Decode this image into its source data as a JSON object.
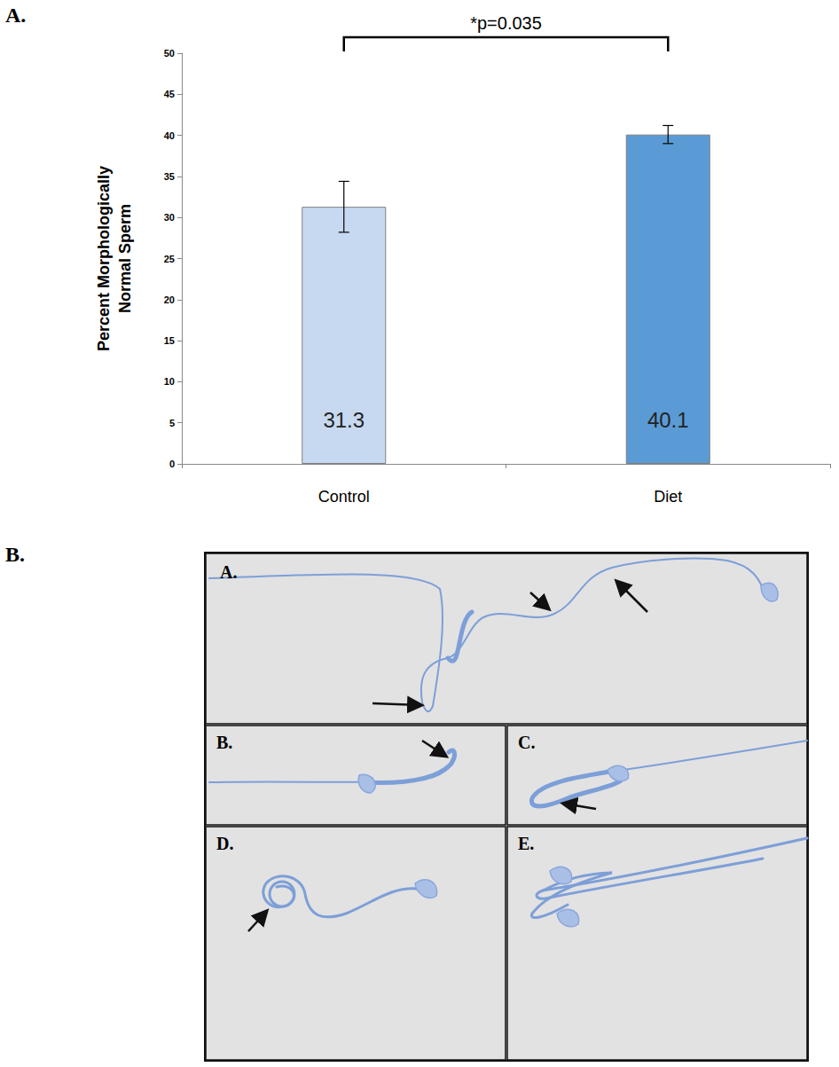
{
  "figure_labels": [
    "A.",
    "B."
  ],
  "chart_data": {
    "type": "bar",
    "categories": [
      "Control",
      "Diet"
    ],
    "values": [
      31.3,
      40.1
    ],
    "errors": [
      3.1,
      1.1
    ],
    "colors": [
      "#c6d9f1",
      "#5b9bd5"
    ],
    "y_label": "Percent Morphologically Normal Sperm",
    "annotation": "*p=0.035",
    "ylim": [
      0,
      50
    ],
    "yticks": [
      0,
      5,
      10,
      15,
      20,
      25,
      30,
      35,
      40,
      45,
      50
    ],
    "grid": false,
    "data_labels": true
  },
  "micrograph_panels": [
    "A.",
    "B.",
    "C.",
    "D.",
    "E."
  ]
}
